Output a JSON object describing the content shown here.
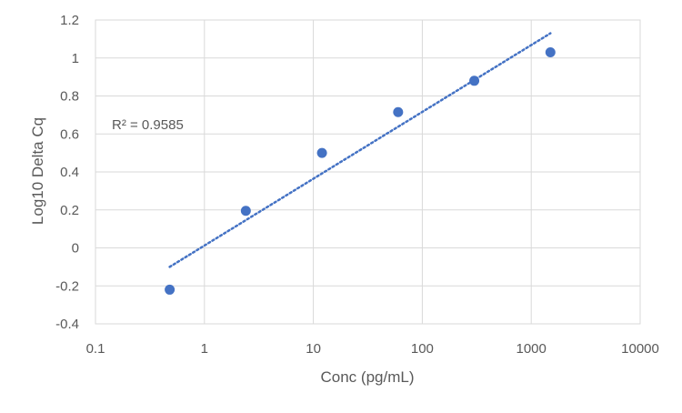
{
  "chart_data": {
    "type": "scatter",
    "title": "",
    "xlabel": "Conc (pg/mL)",
    "ylabel": "Log10 Delta Cq",
    "x_scale": "log",
    "xlim": [
      0.1,
      10000
    ],
    "ylim": [
      -0.4,
      1.2
    ],
    "x_ticks": [
      0.1,
      1,
      10,
      100,
      1000,
      10000
    ],
    "x_tick_labels": [
      "0.1",
      "1",
      "10",
      "100",
      "1000",
      "10000"
    ],
    "y_ticks": [
      -0.4,
      -0.2,
      0,
      0.2,
      0.4,
      0.6,
      0.8,
      1,
      1.2
    ],
    "y_tick_labels": [
      "-0.4",
      "-0.2",
      "0",
      "0.2",
      "0.4",
      "0.6",
      "0.8",
      "1",
      "1.2"
    ],
    "grid": true,
    "series": [
      {
        "x": [
          0.48,
          2.4,
          12,
          60,
          300,
          1500
        ],
        "y": [
          -0.22,
          0.195,
          0.5,
          0.715,
          0.88,
          1.03
        ],
        "color": "#4472c4"
      }
    ],
    "trendline": {
      "type": "log",
      "x_range": [
        0.48,
        1500
      ],
      "y_range": [
        -0.1,
        1.13
      ],
      "color": "#4472c4",
      "style": "dotted"
    },
    "annotations": [
      {
        "text": "R² = 0.9585"
      }
    ]
  }
}
